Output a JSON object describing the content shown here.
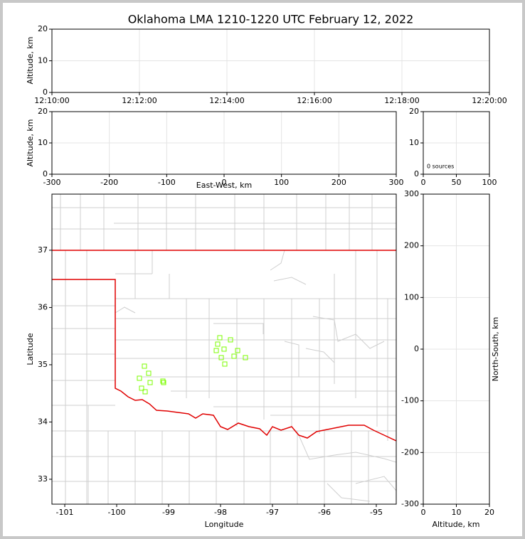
{
  "chart_data": [
    {
      "type": "time-height",
      "title": "Oklahoma LMA 1210-1220 UTC February 12, 2022",
      "y_label": "Altitude, km",
      "xticks": [
        "12:10:00",
        "12:12:00",
        "12:14:00",
        "12:16:00",
        "12:18:00",
        "12:20:00"
      ],
      "ylim": [
        0,
        20
      ],
      "yticks": [
        0,
        10,
        20
      ],
      "grid": true
    },
    {
      "type": "scatter",
      "x_label": "East-West, km",
      "y_label": "Altitude, km",
      "xlim": [
        -300,
        300
      ],
      "xticks": [
        -300,
        -200,
        -100,
        0,
        100,
        200,
        300
      ],
      "ylim": [
        0,
        20
      ],
      "yticks": [
        0,
        10,
        20
      ],
      "grid": true,
      "x": [],
      "values": []
    },
    {
      "type": "histogram",
      "annotation": "0 sources",
      "xlim": [
        0,
        100
      ],
      "xticks": [
        0,
        50,
        100
      ],
      "ylim": [
        0,
        20
      ],
      "yticks": [
        0,
        10,
        20
      ],
      "grid": true
    },
    {
      "type": "map",
      "x_label": "Longitude",
      "y_label": "Latitude",
      "xlim": [
        -101.247,
        -94.616
      ],
      "xticks": [
        -101,
        -100,
        -99,
        -98,
        -97,
        -96,
        -95
      ],
      "ylim": [
        32.565,
        37.98
      ],
      "yticks": [
        33,
        34,
        35,
        36,
        37
      ],
      "grid": false,
      "color": "#7cfc00",
      "x": [
        -99.466,
        -99.384,
        -99.562,
        -99.356,
        -99.521,
        -99.452,
        -99.11,
        -99.096,
        -98.014,
        -98.055,
        -98.082,
        -97.932,
        -97.808,
        -97.671,
        -97.986,
        -97.74,
        -97.521,
        -97.918
      ],
      "values": [
        34.975,
        34.851,
        34.764,
        34.689,
        34.59,
        34.528,
        34.714,
        34.689,
        35.472,
        35.36,
        35.248,
        35.273,
        35.435,
        35.248,
        35.124,
        35.149,
        35.124,
        35.012
      ]
    },
    {
      "type": "scatter",
      "x_label": "Altitude, km",
      "y_label": "North-South, km",
      "xlim": [
        0,
        20
      ],
      "xticks": [
        0,
        10,
        20
      ],
      "ylim": [
        -300,
        300
      ],
      "yticks": [
        -300,
        -200,
        -100,
        0,
        100,
        200,
        300
      ],
      "grid": true,
      "x": [],
      "values": []
    }
  ]
}
